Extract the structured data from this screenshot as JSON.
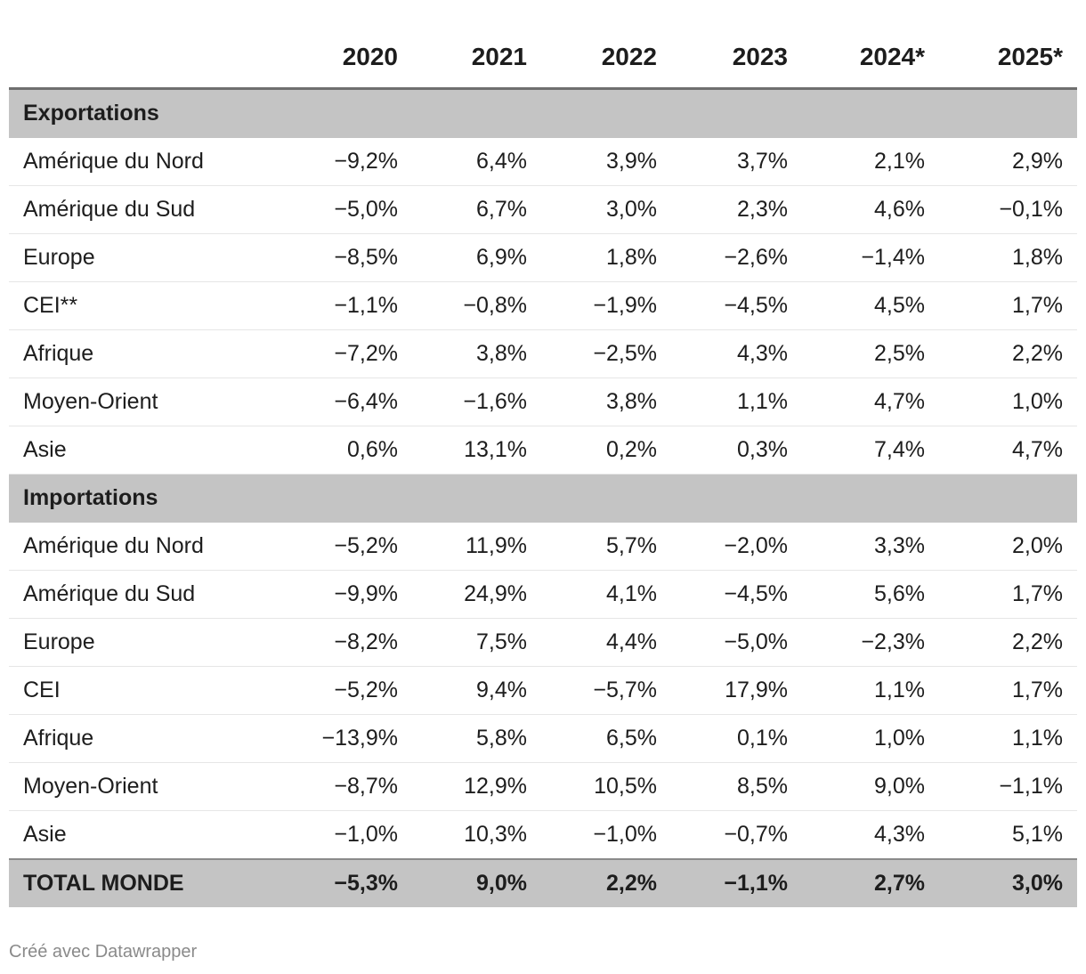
{
  "columns": [
    "",
    "2020",
    "2021",
    "2022",
    "2023",
    "2024*",
    "2025*"
  ],
  "sections": [
    {
      "title": "Exportations",
      "rows": [
        {
          "label": "Amérique du Nord",
          "values": [
            "−9,2%",
            "6,4%",
            "3,9%",
            "3,7%",
            "2,1%",
            "2,9%"
          ]
        },
        {
          "label": "Amérique du Sud",
          "values": [
            "−5,0%",
            "6,7%",
            "3,0%",
            "2,3%",
            "4,6%",
            "−0,1%"
          ]
        },
        {
          "label": "Europe",
          "values": [
            "−8,5%",
            "6,9%",
            "1,8%",
            "−2,6%",
            "−1,4%",
            "1,8%"
          ]
        },
        {
          "label": "CEI**",
          "values": [
            "−1,1%",
            "−0,8%",
            "−1,9%",
            "−4,5%",
            "4,5%",
            "1,7%"
          ]
        },
        {
          "label": "Afrique",
          "values": [
            "−7,2%",
            "3,8%",
            "−2,5%",
            "4,3%",
            "2,5%",
            "2,2%"
          ]
        },
        {
          "label": "Moyen-Orient",
          "values": [
            "−6,4%",
            "−1,6%",
            "3,8%",
            "1,1%",
            "4,7%",
            "1,0%"
          ]
        },
        {
          "label": "Asie",
          "values": [
            "0,6%",
            "13,1%",
            "0,2%",
            "0,3%",
            "7,4%",
            "4,7%"
          ]
        }
      ]
    },
    {
      "title": "Importations",
      "rows": [
        {
          "label": "Amérique du Nord",
          "values": [
            "−5,2%",
            "11,9%",
            "5,7%",
            "−2,0%",
            "3,3%",
            "2,0%"
          ]
        },
        {
          "label": "Amérique du Sud",
          "values": [
            "−9,9%",
            "24,9%",
            "4,1%",
            "−4,5%",
            "5,6%",
            "1,7%"
          ]
        },
        {
          "label": "Europe",
          "values": [
            "−8,2%",
            "7,5%",
            "4,4%",
            "−5,0%",
            "−2,3%",
            "2,2%"
          ]
        },
        {
          "label": "CEI",
          "values": [
            "−5,2%",
            "9,4%",
            "−5,7%",
            "17,9%",
            "1,1%",
            "1,7%"
          ]
        },
        {
          "label": "Afrique",
          "values": [
            "−13,9%",
            "5,8%",
            "6,5%",
            "0,1%",
            "1,0%",
            "1,1%"
          ]
        },
        {
          "label": "Moyen-Orient",
          "values": [
            "−8,7%",
            "12,9%",
            "10,5%",
            "8,5%",
            "9,0%",
            "−1,1%"
          ]
        },
        {
          "label": "Asie",
          "values": [
            "−1,0%",
            "10,3%",
            "−1,0%",
            "−0,7%",
            "4,3%",
            "5,1%"
          ]
        }
      ]
    }
  ],
  "total": {
    "label": "TOTAL MONDE",
    "values": [
      "−5,3%",
      "9,0%",
      "2,2%",
      "−1,1%",
      "2,7%",
      "3,0%"
    ]
  },
  "footer": "Créé avec Datawrapper"
}
